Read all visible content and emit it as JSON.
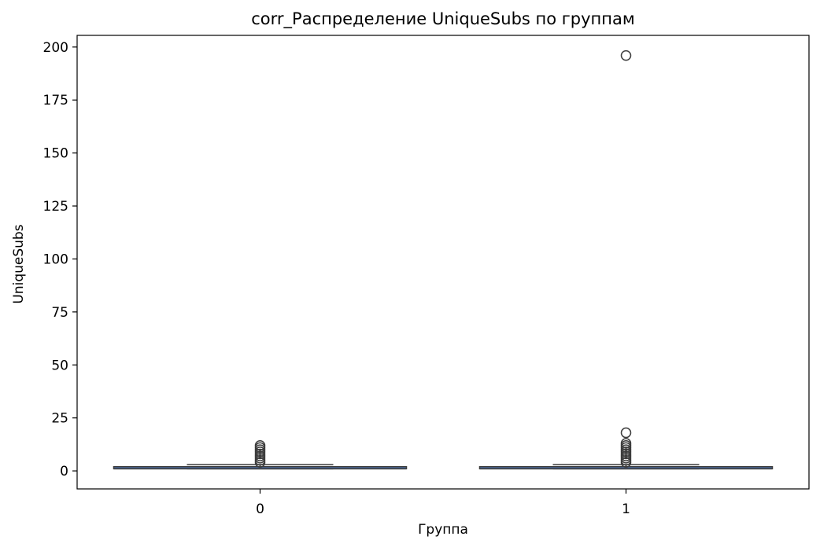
{
  "chart_data": {
    "type": "box",
    "title": "corr_Распределение UniqueSubs по группам",
    "xlabel": "Группа",
    "ylabel": "UniqueSubs",
    "categories": [
      "0",
      "1"
    ],
    "ylim": [
      -8.5,
      205.5
    ],
    "yticks": [
      0,
      25,
      50,
      75,
      100,
      125,
      150,
      175,
      200
    ],
    "box_color": "#4c72b0",
    "line_color": "#3d3d3d",
    "boxes": [
      {
        "category": "0",
        "q1": 1,
        "median": 1,
        "q3": 2,
        "whisker_low": 1,
        "whisker_high": 3,
        "outliers": [
          4,
          5,
          6,
          7,
          8,
          9,
          10,
          11,
          12
        ]
      },
      {
        "category": "1",
        "q1": 1,
        "median": 1,
        "q3": 2,
        "whisker_low": 1,
        "whisker_high": 3,
        "outliers": [
          4,
          5,
          6,
          7,
          8,
          9,
          10,
          11,
          12,
          13,
          18,
          196
        ]
      }
    ],
    "grid": false,
    "legend": "none"
  }
}
